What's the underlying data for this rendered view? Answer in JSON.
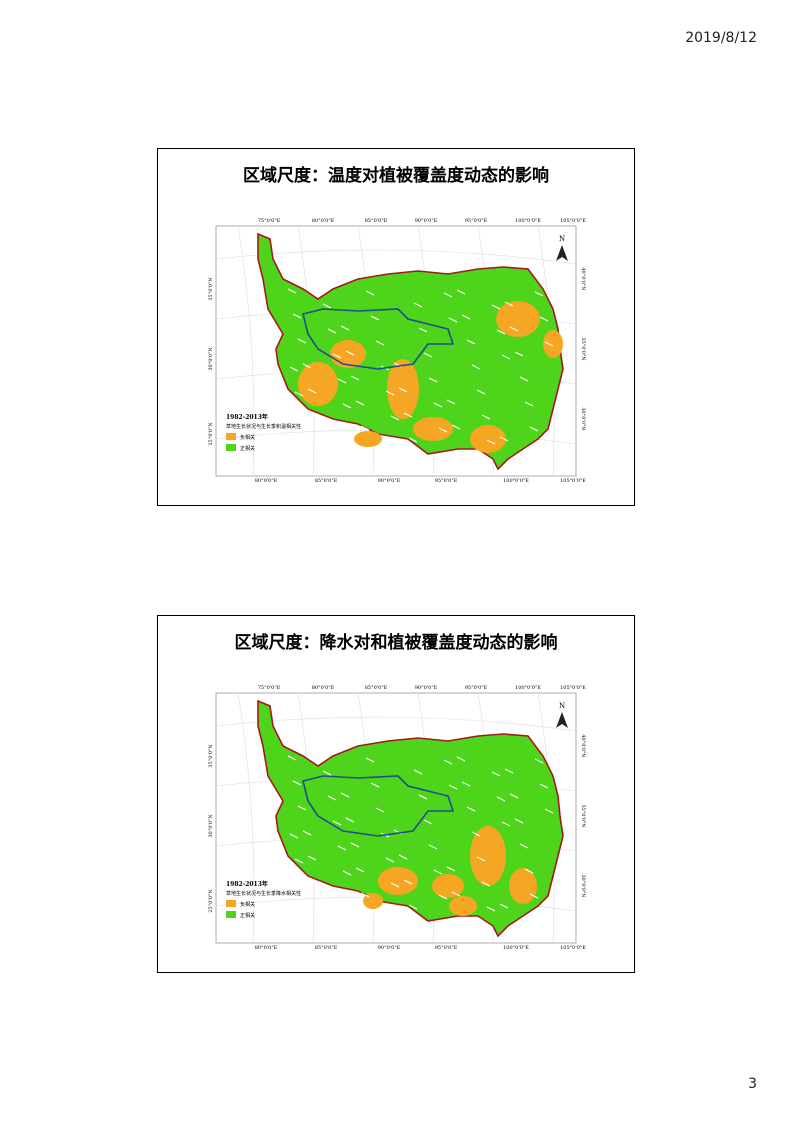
{
  "header": {
    "date": "2019/8/12"
  },
  "footer": {
    "page": "3"
  },
  "slides": [
    {
      "title": "区域尺度：温度对植被覆盖度动态的影响",
      "top_labels": [
        "75°0'0\"E",
        "80°0'0\"E",
        "85°0'0\"E",
        "90°0'0\"E",
        "95°0'0\"E",
        "100°0'0\"E",
        "105°0'0\"E"
      ],
      "bottom_labels": [
        "80°0'0\"E",
        "85°0'0\"E",
        "90°0'0\"E",
        "95°0'0\"E",
        "100°0'0\"E",
        "105°0'0\"E"
      ],
      "left_labels": [
        "35°0'0\"N",
        "30°0'0\"N",
        "25°0'0\"N"
      ],
      "right_labels": [
        "40°0'0\"N",
        "35°0'0\"N",
        "30°0'0\"N"
      ],
      "north": "N",
      "legend": {
        "title": "1982-2013年",
        "subtitle": "草地生长状况与生长季积温相关性",
        "items": [
          "负相关",
          "正相关"
        ]
      }
    },
    {
      "title": "区域尺度：降水对和植被覆盖度动态的影响",
      "top_labels": [
        "75°0'0\"E",
        "80°0'0\"E",
        "85°0'0\"E",
        "90°0'0\"E",
        "95°0'0\"E",
        "100°0'0\"E",
        "105°0'0\"E"
      ],
      "bottom_labels": [
        "80°0'0\"E",
        "85°0'0\"E",
        "90°0'0\"E",
        "95°0'0\"E",
        "100°0'0\"E",
        "105°0'0\"E"
      ],
      "left_labels": [
        "35°0'0\"N",
        "30°0'0\"N",
        "25°0'0\"N"
      ],
      "right_labels": [
        "40°0'0\"N",
        "35°0'0\"N",
        "30°0'0\"N"
      ],
      "north": "N",
      "legend": {
        "title": "1982-2013年",
        "subtitle": "草地生长状况与生长季降水相关性",
        "items": [
          "负相关",
          "正相关"
        ]
      }
    }
  ]
}
